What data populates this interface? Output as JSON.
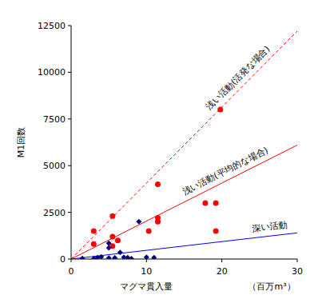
{
  "chart_data": {
    "type": "scatter",
    "x_label": "マグマ貫入量",
    "y_label": "M1回数",
    "annotations": [
      "（百万m³）"
    ],
    "xlim": [
      0,
      30
    ],
    "ylim": [
      0,
      12500
    ],
    "xticks": [
      0,
      10,
      20,
      30
    ],
    "yticks": [
      0,
      2500,
      5000,
      7500,
      10000,
      12500
    ],
    "grid": false,
    "series": [
      {
        "name": "浅い活動(活発な場合)",
        "type": "line",
        "color": "#ff0000",
        "line_style": "dashed",
        "marker": "none",
        "x": [
          0,
          30
        ],
        "values": [
          0,
          12200
        ]
      },
      {
        "name": "浅い活動(平均的な場合)",
        "type": "line",
        "color": "#ff0000",
        "line_style": "solid",
        "marker": "none",
        "x": [
          0,
          30
        ],
        "values": [
          0,
          6100
        ]
      },
      {
        "name": "深い活動",
        "type": "line",
        "color": "#0000ff",
        "line_style": "solid",
        "marker": "none",
        "x": [
          0,
          30
        ],
        "values": [
          0,
          1400
        ]
      },
      {
        "type": "scatter",
        "color": "#ff0000",
        "marker": "circle",
        "x": [
          3,
          3,
          5.5,
          5.5,
          5.5,
          6.2,
          10.3,
          11.5,
          11.5,
          11.5,
          17.8,
          19.2,
          19.2,
          19.8
        ],
        "values": [
          1500,
          800,
          2300,
          1200,
          700,
          1000,
          1500,
          4000,
          2200,
          2000,
          3000,
          3000,
          1500,
          8000
        ]
      },
      {
        "type": "scatter",
        "color": "#000080",
        "marker": "diamond",
        "x": [
          1.5,
          3,
          3.5,
          4,
          5,
          5,
          5,
          5.8,
          6.5,
          7,
          7.5,
          8,
          9,
          10,
          11
        ],
        "values": [
          30,
          20,
          80,
          120,
          850,
          600,
          50,
          60,
          350,
          100,
          80,
          20,
          2000,
          100,
          80
        ]
      }
    ]
  }
}
